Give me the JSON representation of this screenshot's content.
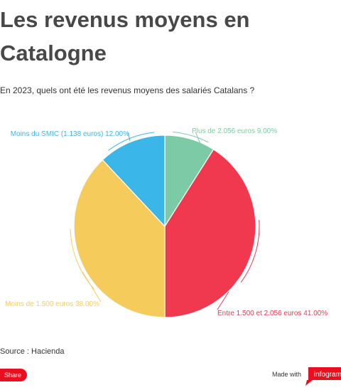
{
  "header": {
    "title": "Les revenus moyens en Catalogne",
    "subtitle": "En 2023, quels ont été les revenus moyens des salariés Catalans ?"
  },
  "footer": {
    "source": "Source : Hacienda",
    "share_label": "Share",
    "made_with": "Made with",
    "brand": "infogram"
  },
  "colors": {
    "green": "#7dcaa6",
    "red": "#f0384e",
    "yellow": "#f5cc5c",
    "blue": "#3bb6e8",
    "share": "#e8101e"
  },
  "chart_data": {
    "type": "pie",
    "title": "",
    "slices": [
      {
        "label": "Plus de 2.056 euros",
        "value": 9.0,
        "value_text": "9.00%",
        "color": "#7dcaa6"
      },
      {
        "label": "Entre 1.500 et 2.056 euros",
        "value": 41.0,
        "value_text": "41.00%",
        "color": "#f0384e"
      },
      {
        "label": "Moins de 1.500 euros",
        "value": 38.0,
        "value_text": "38.00%",
        "color": "#f5cc5c"
      },
      {
        "label": "Moins du SMIC (1.138 euros)",
        "value": 12.0,
        "value_text": "12.00%",
        "color": "#3bb6e8"
      }
    ],
    "start_angle": "top",
    "direction": "clockwise"
  }
}
